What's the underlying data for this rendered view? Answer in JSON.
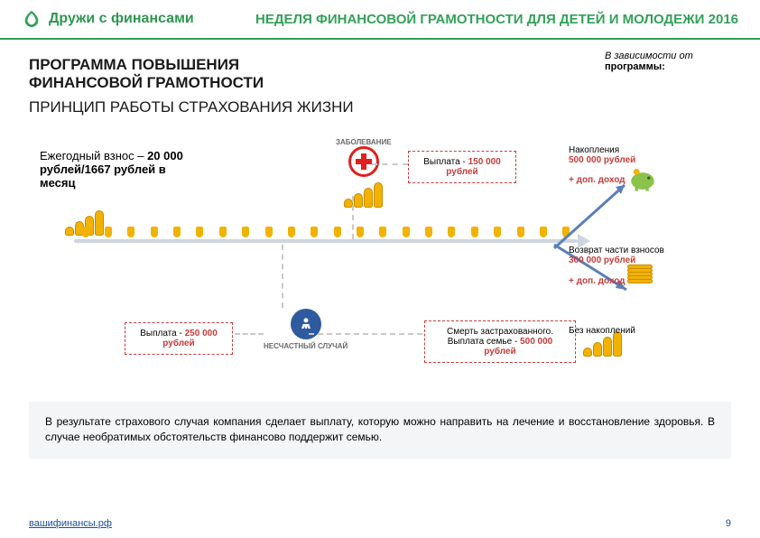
{
  "header": {
    "brand": "Дружи с финансами",
    "tagline": "НЕДЕЛЯ ФИНАНСОВОЙ ГРАМОТНОСТИ ДЛЯ ДЕТЕЙ И МОЛОДЕЖИ 2016"
  },
  "titles": {
    "line1": "ПРОГРАММА ПОВЫШЕНИЯ",
    "line2": "ФИНАНСОВОЙ ГРАМОТНОСТИ",
    "subtitle": "ПРИНЦИП РАБОТЫ СТРАХОВАНИЯ ЖИЗНИ"
  },
  "side_note": {
    "italic": "В зависимости от",
    "bold": "программы:"
  },
  "annual": {
    "label": "Ежегодный взнос –",
    "value": "20 000 рублей/1667 рублей в месяц"
  },
  "icons": {
    "illness_label": "ЗАБОЛЕВАНИЕ",
    "accident_label": "НЕСЧАСТНЫЙ СЛУЧАЙ"
  },
  "callouts": {
    "payout_illness_label": "Выплата -",
    "payout_illness_value": "150 000 рублей",
    "payout_accident_label": "Выплата -",
    "payout_accident_value": "250 000 рублей",
    "death_l1": "Смерть застрахованного.",
    "death_l2": "Выплата семье -",
    "death_value": "500 000 рублей"
  },
  "outcomes": {
    "savings_l1": "Накопления",
    "savings_value": "500 000 рублей",
    "savings_extra": "+ доп. доход",
    "partial_l1": "Возврат части взносов",
    "partial_value": "300 000 рублей",
    "partial_extra": "+ доп. доход",
    "none": "Без накоплений"
  },
  "footer": {
    "text": "В результате страхового случая компания сделает выплату, которую можно направить на лечение и восстановление здоровья. В случае необратимых обстоятельств финансово поддержит семью.",
    "link": "вашифинансы.рф",
    "page": "9"
  },
  "style": {
    "brand_green": "#34a05a",
    "accent_gold": "#f2b300",
    "callout_red": "#c73c3c",
    "timeline_gray": "#cfd6dd",
    "footer_bg": "#f4f5f6",
    "link_blue": "#1a4fa0",
    "timeline_ticks": 22
  }
}
